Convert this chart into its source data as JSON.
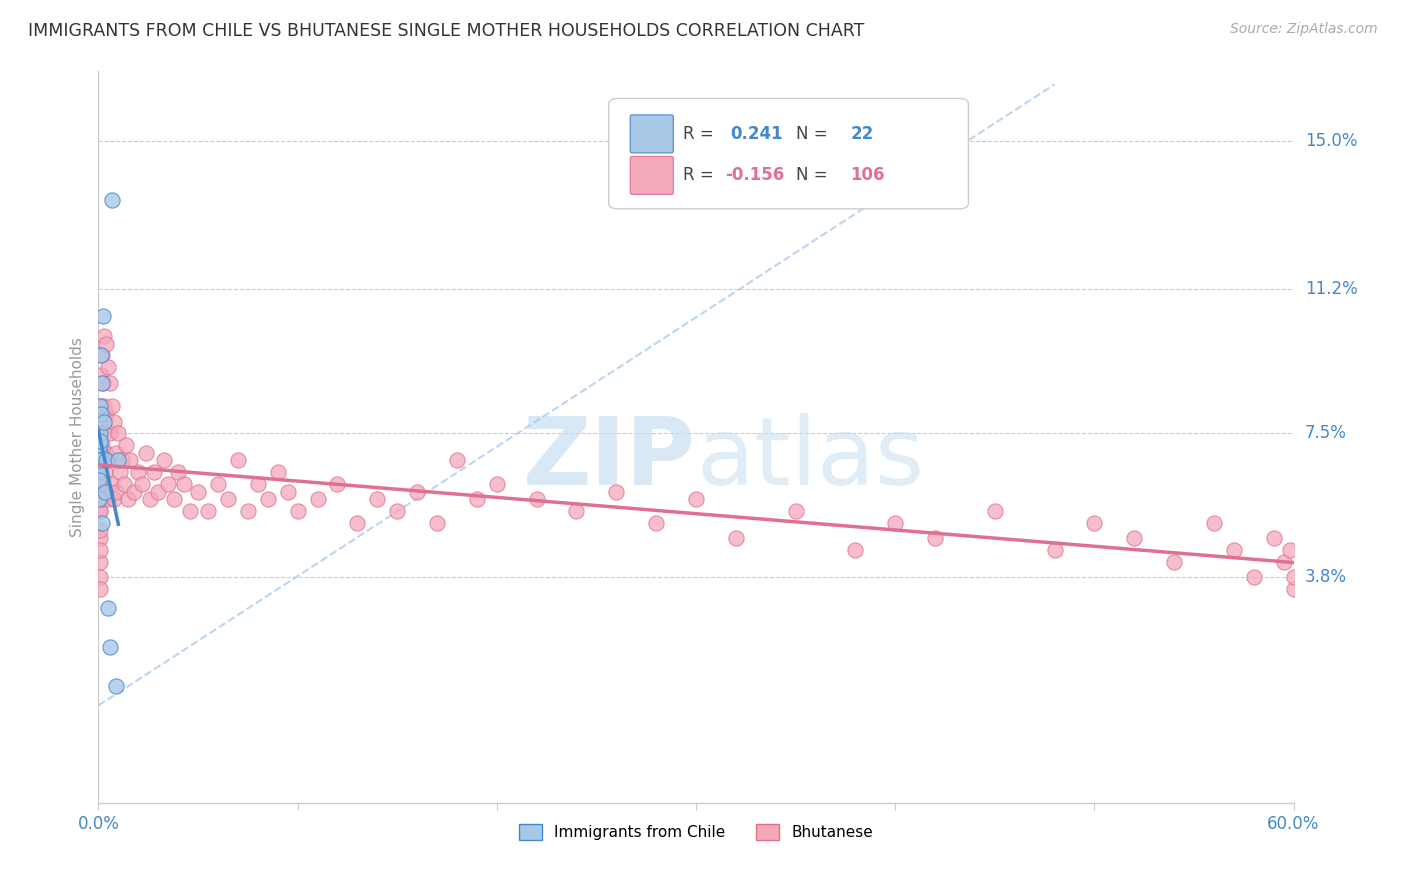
{
  "title": "IMMIGRANTS FROM CHILE VS BHUTANESE SINGLE MOTHER HOUSEHOLDS CORRELATION CHART",
  "source": "Source: ZipAtlas.com",
  "ylabel": "Single Mother Households",
  "ytick_labels": [
    "15.0%",
    "11.2%",
    "7.5%",
    "3.8%"
  ],
  "ytick_values": [
    0.15,
    0.112,
    0.075,
    0.038
  ],
  "xmin": 0.0,
  "xmax": 0.6,
  "ymin": -0.02,
  "ymax": 0.168,
  "color_chile": "#a8c8e8",
  "color_bhutan": "#f4a8ba",
  "color_line_chile": "#4488cc",
  "color_line_bhutan": "#e07090",
  "color_diag": "#aaccee",
  "color_axis_right": "#4488cc",
  "chile_x": [
    0.0003,
    0.0004,
    0.0005,
    0.0006,
    0.0007,
    0.0008,
    0.0009,
    0.001,
    0.001,
    0.0012,
    0.0014,
    0.0016,
    0.002,
    0.0025,
    0.003,
    0.0035,
    0.004,
    0.005,
    0.006,
    0.007,
    0.009,
    0.01
  ],
  "chile_y": [
    0.058,
    0.065,
    0.063,
    0.07,
    0.072,
    0.068,
    0.075,
    0.073,
    0.082,
    0.08,
    0.095,
    0.088,
    0.052,
    0.105,
    0.078,
    0.06,
    0.068,
    0.03,
    0.02,
    0.135,
    0.01,
    0.068
  ],
  "bhutan_x": [
    0.0003,
    0.0005,
    0.0006,
    0.0007,
    0.0008,
    0.0009,
    0.001,
    0.001,
    0.001,
    0.001,
    0.001,
    0.001,
    0.0012,
    0.0013,
    0.0015,
    0.0017,
    0.0018,
    0.002,
    0.002,
    0.002,
    0.0022,
    0.0025,
    0.003,
    0.003,
    0.003,
    0.0035,
    0.004,
    0.004,
    0.004,
    0.005,
    0.005,
    0.005,
    0.006,
    0.006,
    0.007,
    0.007,
    0.008,
    0.008,
    0.009,
    0.009,
    0.01,
    0.011,
    0.012,
    0.013,
    0.014,
    0.015,
    0.016,
    0.018,
    0.02,
    0.022,
    0.024,
    0.026,
    0.028,
    0.03,
    0.033,
    0.035,
    0.038,
    0.04,
    0.043,
    0.046,
    0.05,
    0.055,
    0.06,
    0.065,
    0.07,
    0.075,
    0.08,
    0.085,
    0.09,
    0.095,
    0.1,
    0.11,
    0.12,
    0.13,
    0.14,
    0.15,
    0.16,
    0.17,
    0.18,
    0.19,
    0.2,
    0.22,
    0.24,
    0.26,
    0.28,
    0.3,
    0.32,
    0.35,
    0.38,
    0.4,
    0.42,
    0.45,
    0.48,
    0.5,
    0.52,
    0.54,
    0.56,
    0.57,
    0.58,
    0.59,
    0.595,
    0.598,
    0.6,
    0.6
  ],
  "bhutan_y": [
    0.06,
    0.07,
    0.055,
    0.048,
    0.065,
    0.042,
    0.038,
    0.05,
    0.055,
    0.062,
    0.045,
    0.035,
    0.082,
    0.078,
    0.09,
    0.058,
    0.068,
    0.095,
    0.072,
    0.062,
    0.08,
    0.088,
    0.1,
    0.082,
    0.075,
    0.065,
    0.098,
    0.08,
    0.07,
    0.092,
    0.068,
    0.058,
    0.088,
    0.075,
    0.082,
    0.062,
    0.078,
    0.058,
    0.07,
    0.06,
    0.075,
    0.065,
    0.068,
    0.062,
    0.072,
    0.058,
    0.068,
    0.06,
    0.065,
    0.062,
    0.07,
    0.058,
    0.065,
    0.06,
    0.068,
    0.062,
    0.058,
    0.065,
    0.062,
    0.055,
    0.06,
    0.055,
    0.062,
    0.058,
    0.068,
    0.055,
    0.062,
    0.058,
    0.065,
    0.06,
    0.055,
    0.058,
    0.062,
    0.052,
    0.058,
    0.055,
    0.06,
    0.052,
    0.068,
    0.058,
    0.062,
    0.058,
    0.055,
    0.06,
    0.052,
    0.058,
    0.048,
    0.055,
    0.045,
    0.052,
    0.048,
    0.055,
    0.045,
    0.052,
    0.048,
    0.042,
    0.052,
    0.045,
    0.038,
    0.048,
    0.042,
    0.045,
    0.035,
    0.038
  ]
}
